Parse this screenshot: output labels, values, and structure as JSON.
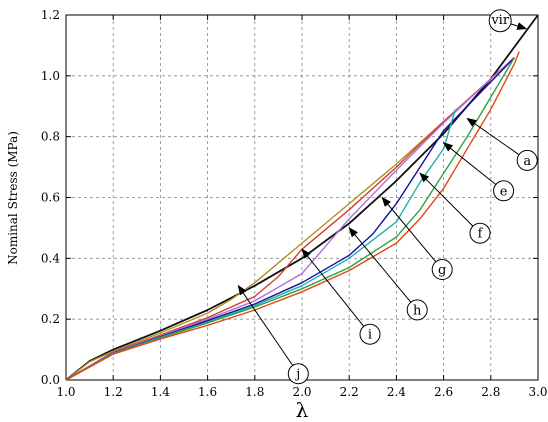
{
  "chart_data": {
    "type": "line",
    "title": "",
    "xlabel": "λ",
    "ylabel": "Nominal Stress (MPa)",
    "xlim": [
      1.0,
      3.0
    ],
    "ylim": [
      0.0,
      1.2
    ],
    "xticks": [
      "1.0",
      "1.2",
      "1.4",
      "1.6",
      "1.8",
      "2.0",
      "2.2",
      "2.4",
      "2.6",
      "2.8",
      "3.0"
    ],
    "yticks": [
      "0.0",
      "0.2",
      "0.4",
      "0.6",
      "0.8",
      "1.0",
      "1.2"
    ],
    "grid": true,
    "series": [
      {
        "name": "vir",
        "color": "#111111",
        "x": [
          1.0,
          1.1,
          1.2,
          1.4,
          1.6,
          1.8,
          2.0,
          2.2,
          2.4,
          2.6,
          2.8,
          3.0
        ],
        "y": [
          0.0,
          0.062,
          0.1,
          0.162,
          0.23,
          0.31,
          0.4,
          0.515,
          0.655,
          0.81,
          0.99,
          1.2
        ]
      },
      {
        "name": "j",
        "color": "#b09020",
        "x": [
          1.0,
          1.1,
          1.2,
          1.4,
          1.6,
          1.7,
          1.8,
          2.0,
          2.2,
          2.4,
          2.6,
          2.8,
          2.9
        ],
        "y": [
          0.0,
          0.06,
          0.095,
          0.155,
          0.22,
          0.265,
          0.32,
          0.45,
          0.58,
          0.71,
          0.85,
          0.99,
          1.06
        ]
      },
      {
        "name": "i",
        "color": "#d04030",
        "x": [
          1.0,
          1.2,
          1.4,
          1.6,
          1.8,
          1.9,
          2.0,
          2.2,
          2.4,
          2.6,
          2.8,
          2.9
        ],
        "y": [
          0.0,
          0.092,
          0.148,
          0.205,
          0.275,
          0.34,
          0.43,
          0.56,
          0.7,
          0.85,
          0.99,
          1.06
        ]
      },
      {
        "name": "h",
        "color": "#b070d8",
        "x": [
          1.0,
          1.2,
          1.4,
          1.6,
          1.8,
          2.0,
          2.1,
          2.2,
          2.4,
          2.6,
          2.8,
          2.9
        ],
        "y": [
          0.0,
          0.09,
          0.145,
          0.2,
          0.26,
          0.35,
          0.44,
          0.53,
          0.69,
          0.845,
          0.99,
          1.06
        ]
      },
      {
        "name": "g",
        "color": "#1010a0",
        "x": [
          1.0,
          1.2,
          1.4,
          1.6,
          1.8,
          2.0,
          2.2,
          2.3,
          2.4,
          2.5,
          2.6,
          2.8,
          2.9
        ],
        "y": [
          0.0,
          0.088,
          0.142,
          0.195,
          0.25,
          0.32,
          0.41,
          0.48,
          0.58,
          0.7,
          0.82,
          0.98,
          1.06
        ]
      },
      {
        "name": "f",
        "color": "#20b0b0",
        "x": [
          1.0,
          1.2,
          1.4,
          1.6,
          1.8,
          2.0,
          2.2,
          2.4,
          2.5,
          2.6,
          2.65
        ],
        "y": [
          0.0,
          0.087,
          0.14,
          0.19,
          0.245,
          0.31,
          0.4,
          0.52,
          0.65,
          0.76,
          0.89
        ]
      },
      {
        "name": "e",
        "color": "#30a040",
        "x": [
          1.0,
          1.2,
          1.4,
          1.6,
          1.8,
          2.0,
          2.2,
          2.4,
          2.5,
          2.6,
          2.7,
          2.8,
          2.9
        ],
        "y": [
          0.0,
          0.086,
          0.138,
          0.188,
          0.24,
          0.3,
          0.37,
          0.47,
          0.56,
          0.68,
          0.8,
          0.93,
          1.06
        ]
      },
      {
        "name": "a",
        "color": "#e04818",
        "x": [
          1.0,
          1.2,
          1.4,
          1.6,
          1.8,
          2.0,
          2.2,
          2.4,
          2.5,
          2.6,
          2.7,
          2.8,
          2.9,
          2.92
        ],
        "y": [
          0.0,
          0.085,
          0.135,
          0.18,
          0.23,
          0.29,
          0.36,
          0.45,
          0.53,
          0.63,
          0.76,
          0.89,
          1.04,
          1.08
        ]
      }
    ],
    "callouts": [
      {
        "label": "vir",
        "target": [
          2.95,
          1.155
        ]
      },
      {
        "label": "a",
        "target": [
          2.7,
          0.86
        ]
      },
      {
        "label": "e",
        "target": [
          2.6,
          0.78
        ]
      },
      {
        "label": "f",
        "target": [
          2.5,
          0.68
        ]
      },
      {
        "label": "g",
        "target": [
          2.34,
          0.6
        ]
      },
      {
        "label": "h",
        "target": [
          2.2,
          0.5
        ]
      },
      {
        "label": "i",
        "target": [
          2.0,
          0.43
        ]
      },
      {
        "label": "j",
        "target": [
          1.73,
          0.31
        ]
      }
    ]
  }
}
